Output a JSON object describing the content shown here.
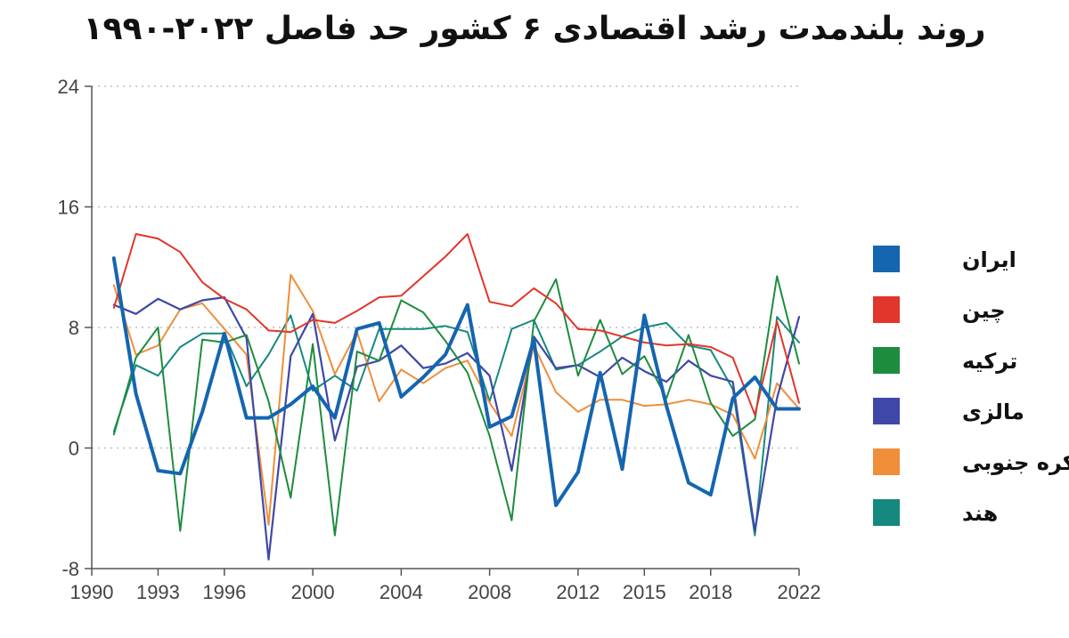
{
  "chart_data": {
    "type": "line",
    "title": "روند بلندمدت رشد اقتصادی ۶ کشور حد فاصل ۲۰۲۲-۱۹۹۰",
    "xlabel": "",
    "ylabel": "",
    "xlim": [
      1990,
      2022
    ],
    "ylim": [
      -8,
      24
    ],
    "x_ticks": [
      1990,
      1993,
      1996,
      2000,
      2004,
      2008,
      2012,
      2015,
      2018,
      2022
    ],
    "y_ticks": [
      -8,
      0,
      8,
      16,
      24
    ],
    "grid": "horizontal dotted",
    "legend_position": "right",
    "x": [
      1991,
      1992,
      1993,
      1994,
      1995,
      1996,
      1997,
      1998,
      1999,
      2000,
      2001,
      2002,
      2003,
      2004,
      2005,
      2006,
      2007,
      2008,
      2009,
      2010,
      2011,
      2012,
      2013,
      2014,
      2015,
      2016,
      2017,
      2018,
      2019,
      2020,
      2021,
      2022
    ],
    "series": [
      {
        "name": "ایران",
        "color": "#1565b0",
        "values": [
          12.6,
          3.6,
          -1.5,
          -1.7,
          2.4,
          7.6,
          2.0,
          2.0,
          2.9,
          4.1,
          2.0,
          7.9,
          8.3,
          3.4,
          4.7,
          6.2,
          9.5,
          1.4,
          2.1,
          7.2,
          -3.8,
          -1.6,
          5.0,
          -1.4,
          8.8,
          2.8,
          -2.3,
          -3.1,
          3.3,
          4.7,
          2.6,
          2.6
        ]
      },
      {
        "name": "چین",
        "color": "#e2352b",
        "values": [
          9.3,
          14.2,
          13.9,
          13.0,
          11.0,
          9.9,
          9.2,
          7.8,
          7.7,
          8.5,
          8.3,
          9.1,
          10.0,
          10.1,
          11.4,
          12.7,
          14.2,
          9.7,
          9.4,
          10.6,
          9.6,
          7.9,
          7.8,
          7.4,
          7.0,
          6.8,
          6.9,
          6.7,
          6.0,
          2.2,
          8.4,
          3.0
        ]
      },
      {
        "name": "ترکیه",
        "color": "#1e8c3e",
        "values": [
          0.9,
          6.0,
          8.0,
          -5.5,
          7.2,
          7.0,
          7.5,
          3.1,
          -3.3,
          6.9,
          -5.8,
          6.4,
          5.8,
          9.8,
          9.0,
          7.1,
          5.0,
          0.8,
          -4.8,
          8.4,
          11.2,
          4.8,
          8.5,
          4.9,
          6.1,
          3.3,
          7.5,
          3.0,
          0.8,
          1.9,
          11.4,
          5.6
        ]
      },
      {
        "name": "مالزی",
        "color": "#3f48a8",
        "values": [
          9.5,
          8.9,
          9.9,
          9.2,
          9.8,
          10.0,
          7.3,
          -7.4,
          6.1,
          8.9,
          0.5,
          5.4,
          5.8,
          6.8,
          5.3,
          5.6,
          6.3,
          4.8,
          -1.5,
          7.4,
          5.3,
          5.5,
          4.7,
          6.0,
          5.1,
          4.4,
          5.8,
          4.8,
          4.4,
          -5.5,
          3.3,
          8.7
        ]
      },
      {
        "name": "کره جنوبی",
        "color": "#f08e3a",
        "values": [
          10.8,
          6.2,
          6.8,
          9.2,
          9.6,
          7.9,
          6.2,
          -5.1,
          11.5,
          9.1,
          4.9,
          7.7,
          3.1,
          5.2,
          4.3,
          5.3,
          5.8,
          3.0,
          0.8,
          6.8,
          3.7,
          2.4,
          3.2,
          3.2,
          2.8,
          2.9,
          3.2,
          2.9,
          2.2,
          -0.7,
          4.3,
          2.6
        ]
      },
      {
        "name": "هند",
        "color": "#16897f",
        "values": [
          1.1,
          5.5,
          4.8,
          6.7,
          7.6,
          7.6,
          4.1,
          6.2,
          8.8,
          3.8,
          4.8,
          3.8,
          7.9,
          7.9,
          7.9,
          8.1,
          7.7,
          3.1,
          7.9,
          8.5,
          5.2,
          5.5,
          6.4,
          7.4,
          8.0,
          8.3,
          6.8,
          6.5,
          3.9,
          -5.8,
          8.7,
          7.0
        ]
      }
    ]
  }
}
